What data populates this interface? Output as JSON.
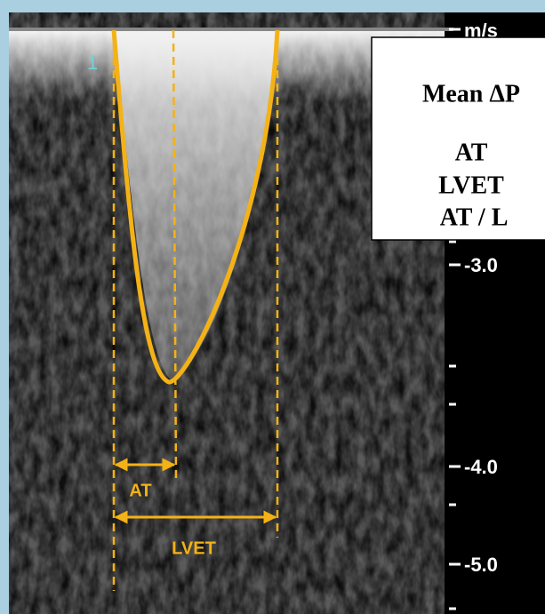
{
  "scale": {
    "unit": "m/s",
    "labels": [
      "-3.0",
      "-4.0",
      "-5.0"
    ]
  },
  "marker": "1",
  "info_box": {
    "lines": [
      "Mean ΔP",
      "AT",
      "LVET",
      "AT / L"
    ]
  },
  "annotations": {
    "at": "AT",
    "lvet": "LVET"
  }
}
